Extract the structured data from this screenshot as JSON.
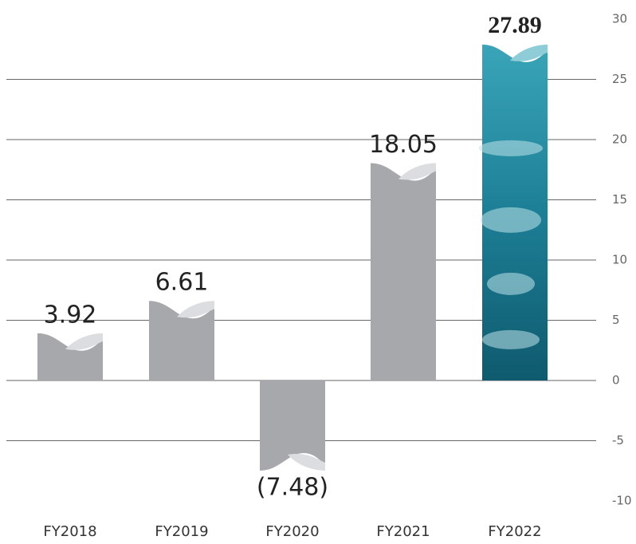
{
  "chart_data": {
    "type": "bar",
    "categories": [
      "FY2018",
      "FY2019",
      "FY2020",
      "FY2021",
      "FY2022"
    ],
    "values": [
      3.92,
      6.61,
      -7.48,
      18.05,
      27.89
    ],
    "value_labels": [
      "3.92",
      "6.61",
      "(7.48)",
      "18.05",
      "27.89"
    ],
    "colors": [
      "#a7a8ab",
      "#a7a8ab",
      "#a7a8ab",
      "#a7a8ab",
      "#1b8a9e"
    ],
    "label_colors": [
      "#222222",
      "#222222",
      "#222222",
      "#222222",
      "#1b8a9e"
    ],
    "ylim": [
      -10,
      30
    ],
    "yticks": [
      -10,
      -5,
      0,
      5,
      10,
      15,
      20,
      25,
      30
    ],
    "axis_side": "right",
    "grid": true
  }
}
